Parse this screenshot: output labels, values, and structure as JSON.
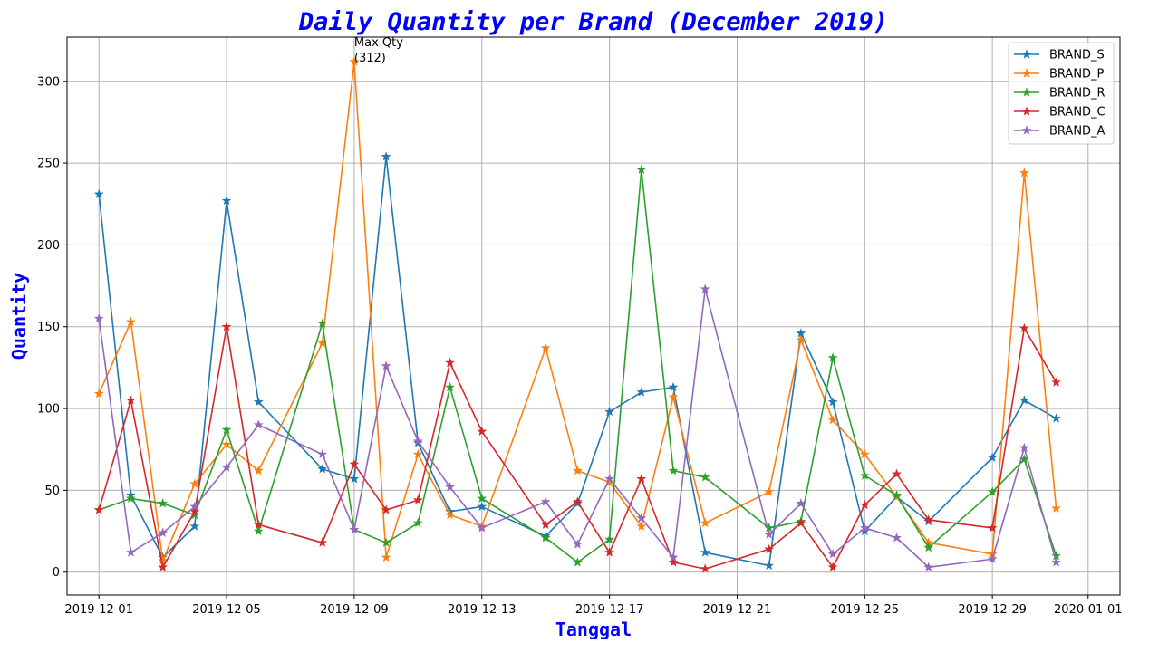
{
  "chart_data": {
    "type": "line",
    "title": "Daily Quantity per Brand (December 2019)",
    "xlabel": "Tanggal",
    "ylabel": "Quantity",
    "x_tick_labels": [
      "2019-12-01",
      "2019-12-05",
      "2019-12-09",
      "2019-12-13",
      "2019-12-17",
      "2019-12-21",
      "2019-12-25",
      "2019-12-29",
      "2020-01-01"
    ],
    "y_tick_labels": [
      "0",
      "50",
      "100",
      "150",
      "200",
      "250",
      "300"
    ],
    "xlim": [
      "2019-11-30",
      "2020-01-02"
    ],
    "ylim": [
      -14,
      327
    ],
    "grid": true,
    "legend_position": "top-right",
    "marker": "star",
    "annotation": {
      "text": "Max Qty\n(312)",
      "x": "2019-12-09",
      "y": 312
    },
    "series": [
      {
        "name": "BRAND_S",
        "color": "#1f77b4",
        "points": [
          [
            "2019-12-01",
            231
          ],
          [
            "2019-12-02",
            47
          ],
          [
            "2019-12-03",
            9
          ],
          [
            "2019-12-04",
            28
          ],
          [
            "2019-12-05",
            227
          ],
          [
            "2019-12-06",
            104
          ],
          [
            "2019-12-08",
            63
          ],
          [
            "2019-12-09",
            57
          ],
          [
            "2019-12-10",
            254
          ],
          [
            "2019-12-11",
            79
          ],
          [
            "2019-12-12",
            37
          ],
          [
            "2019-12-13",
            40
          ],
          [
            "2019-12-15",
            22
          ],
          [
            "2019-12-16",
            42
          ],
          [
            "2019-12-17",
            98
          ],
          [
            "2019-12-18",
            110
          ],
          [
            "2019-12-19",
            113
          ],
          [
            "2019-12-20",
            12
          ],
          [
            "2019-12-22",
            4
          ],
          [
            "2019-12-23",
            146
          ],
          [
            "2019-12-24",
            104
          ],
          [
            "2019-12-25",
            25
          ],
          [
            "2019-12-26",
            46
          ],
          [
            "2019-12-27",
            31
          ],
          [
            "2019-12-29",
            70
          ],
          [
            "2019-12-30",
            105
          ],
          [
            "2019-12-31",
            94
          ]
        ]
      },
      {
        "name": "BRAND_P",
        "color": "#ff7f0e",
        "points": [
          [
            "2019-12-01",
            109
          ],
          [
            "2019-12-02",
            153
          ],
          [
            "2019-12-03",
            7
          ],
          [
            "2019-12-04",
            54
          ],
          [
            "2019-12-05",
            78
          ],
          [
            "2019-12-06",
            62
          ],
          [
            "2019-12-08",
            140
          ],
          [
            "2019-12-09",
            312
          ],
          [
            "2019-12-10",
            9
          ],
          [
            "2019-12-11",
            72
          ],
          [
            "2019-12-12",
            35
          ],
          [
            "2019-12-13",
            28
          ],
          [
            "2019-12-15",
            137
          ],
          [
            "2019-12-16",
            62
          ],
          [
            "2019-12-17",
            55
          ],
          [
            "2019-12-18",
            28
          ],
          [
            "2019-12-19",
            107
          ],
          [
            "2019-12-20",
            30
          ],
          [
            "2019-12-22",
            49
          ],
          [
            "2019-12-23",
            142
          ],
          [
            "2019-12-24",
            93
          ],
          [
            "2019-12-25",
            72
          ],
          [
            "2019-12-26",
            46
          ],
          [
            "2019-12-27",
            18
          ],
          [
            "2019-12-29",
            11
          ],
          [
            "2019-12-30",
            244
          ],
          [
            "2019-12-31",
            39
          ]
        ]
      },
      {
        "name": "BRAND_R",
        "color": "#2ca02c",
        "points": [
          [
            "2019-12-01",
            38
          ],
          [
            "2019-12-02",
            45
          ],
          [
            "2019-12-03",
            42
          ],
          [
            "2019-12-04",
            35
          ],
          [
            "2019-12-05",
            87
          ],
          [
            "2019-12-06",
            25
          ],
          [
            "2019-12-08",
            152
          ],
          [
            "2019-12-09",
            26
          ],
          [
            "2019-12-10",
            18
          ],
          [
            "2019-12-11",
            30
          ],
          [
            "2019-12-12",
            113
          ],
          [
            "2019-12-13",
            45
          ],
          [
            "2019-12-15",
            21
          ],
          [
            "2019-12-16",
            6
          ],
          [
            "2019-12-17",
            20
          ],
          [
            "2019-12-18",
            246
          ],
          [
            "2019-12-19",
            62
          ],
          [
            "2019-12-20",
            58
          ],
          [
            "2019-12-22",
            27
          ],
          [
            "2019-12-23",
            31
          ],
          [
            "2019-12-24",
            131
          ],
          [
            "2019-12-25",
            59
          ],
          [
            "2019-12-26",
            47
          ],
          [
            "2019-12-27",
            15
          ],
          [
            "2019-12-29",
            49
          ],
          [
            "2019-12-30",
            69
          ],
          [
            "2019-12-31",
            10
          ]
        ]
      },
      {
        "name": "BRAND_C",
        "color": "#d62728",
        "points": [
          [
            "2019-12-01",
            38
          ],
          [
            "2019-12-02",
            105
          ],
          [
            "2019-12-03",
            3
          ],
          [
            "2019-12-04",
            37
          ],
          [
            "2019-12-05",
            150
          ],
          [
            "2019-12-06",
            29
          ],
          [
            "2019-12-08",
            18
          ],
          [
            "2019-12-09",
            66
          ],
          [
            "2019-12-10",
            38
          ],
          [
            "2019-12-11",
            44
          ],
          [
            "2019-12-12",
            128
          ],
          [
            "2019-12-13",
            86
          ],
          [
            "2019-12-15",
            29
          ],
          [
            "2019-12-16",
            43
          ],
          [
            "2019-12-17",
            12
          ],
          [
            "2019-12-18",
            57
          ],
          [
            "2019-12-19",
            6
          ],
          [
            "2019-12-20",
            2
          ],
          [
            "2019-12-22",
            14
          ],
          [
            "2019-12-23",
            30
          ],
          [
            "2019-12-24",
            3
          ],
          [
            "2019-12-25",
            41
          ],
          [
            "2019-12-26",
            60
          ],
          [
            "2019-12-27",
            32
          ],
          [
            "2019-12-29",
            27
          ],
          [
            "2019-12-30",
            149
          ],
          [
            "2019-12-31",
            116
          ]
        ]
      },
      {
        "name": "BRAND_A",
        "color": "#9467bd",
        "points": [
          [
            "2019-12-01",
            155
          ],
          [
            "2019-12-02",
            12
          ],
          [
            "2019-12-03",
            24
          ],
          [
            "2019-12-04",
            40
          ],
          [
            "2019-12-05",
            64
          ],
          [
            "2019-12-06",
            90
          ],
          [
            "2019-12-08",
            72
          ],
          [
            "2019-12-09",
            26
          ],
          [
            "2019-12-10",
            126
          ],
          [
            "2019-12-11",
            80
          ],
          [
            "2019-12-12",
            52
          ],
          [
            "2019-12-13",
            27
          ],
          [
            "2019-12-15",
            43
          ],
          [
            "2019-12-16",
            17
          ],
          [
            "2019-12-17",
            57
          ],
          [
            "2019-12-18",
            33
          ],
          [
            "2019-12-19",
            9
          ],
          [
            "2019-12-20",
            173
          ],
          [
            "2019-12-22",
            23
          ],
          [
            "2019-12-23",
            42
          ],
          [
            "2019-12-24",
            11
          ],
          [
            "2019-12-25",
            27
          ],
          [
            "2019-12-26",
            21
          ],
          [
            "2019-12-27",
            3
          ],
          [
            "2019-12-29",
            8
          ],
          [
            "2019-12-30",
            76
          ],
          [
            "2019-12-31",
            6
          ]
        ]
      }
    ]
  }
}
